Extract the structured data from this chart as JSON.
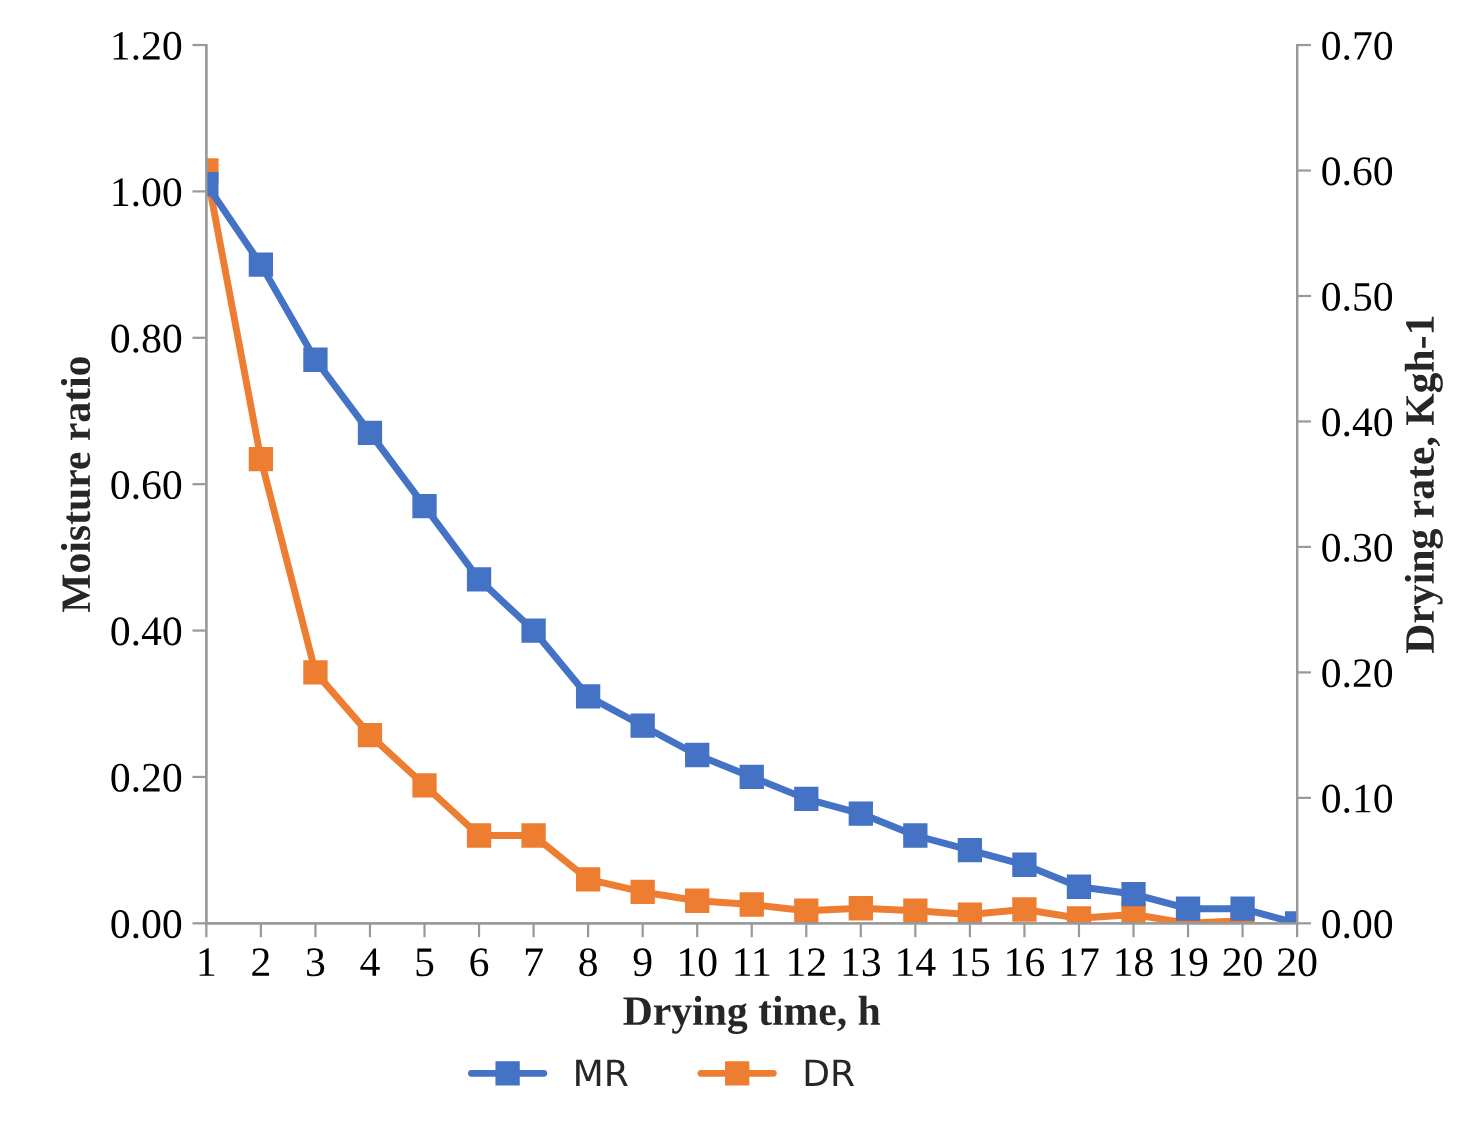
{
  "chart_data": {
    "type": "line",
    "xlabel": "Drying time, h",
    "ylabel": "Moisture ratio",
    "y2label": "Drying rate, Kgh-1",
    "categories": [
      "1",
      "2",
      "3",
      "4",
      "5",
      "6",
      "7",
      "8",
      "9",
      "10",
      "11",
      "12",
      "13",
      "14",
      "15",
      "16",
      "17",
      "18",
      "19",
      "20",
      "20"
    ],
    "series": [
      {
        "name": "MR",
        "color": "#4472c4",
        "values": [
          1.01,
          0.9,
          0.77,
          0.67,
          0.57,
          0.47,
          0.4,
          0.31,
          0.27,
          0.23,
          0.2,
          0.17,
          0.15,
          0.12,
          0.1,
          0.08,
          0.05,
          0.04,
          0.02,
          0.02,
          0.0
        ]
      },
      {
        "name": "DR",
        "color": "#ed7d31",
        "axis": "y2",
        "values": [
          0.6,
          0.37,
          0.2,
          0.15,
          0.11,
          0.07,
          0.07,
          0.035,
          0.025,
          0.018,
          0.015,
          0.01,
          0.012,
          0.01,
          0.007,
          0.011,
          0.004,
          0.007,
          0.0,
          0.002,
          null
        ]
      }
    ],
    "ylim": [
      0,
      1.2
    ],
    "yticks": [
      {
        "value": 0,
        "label": "0.00"
      },
      {
        "value": 0.2,
        "label": "0.20"
      },
      {
        "value": 0.4,
        "label": "0.40"
      },
      {
        "value": 0.6,
        "label": "0.60"
      },
      {
        "value": 0.8,
        "label": "0.80"
      },
      {
        "value": 1.0,
        "label": "1.00"
      },
      {
        "value": 1.2,
        "label": "1.20"
      }
    ],
    "y2lim": [
      0,
      0.7
    ],
    "y2ticks": [
      {
        "value": 0,
        "label": "0.00"
      },
      {
        "value": 0.1,
        "label": "0.10"
      },
      {
        "value": 0.2,
        "label": "0.20"
      },
      {
        "value": 0.3,
        "label": "0.30"
      },
      {
        "value": 0.4,
        "label": "0.40"
      },
      {
        "value": 0.5,
        "label": "0.50"
      },
      {
        "value": 0.6,
        "label": "0.60"
      },
      {
        "value": 0.7,
        "label": "0.70"
      }
    ],
    "grid": false,
    "legend": "bottom",
    "marker": "square",
    "line_style": "solid"
  }
}
